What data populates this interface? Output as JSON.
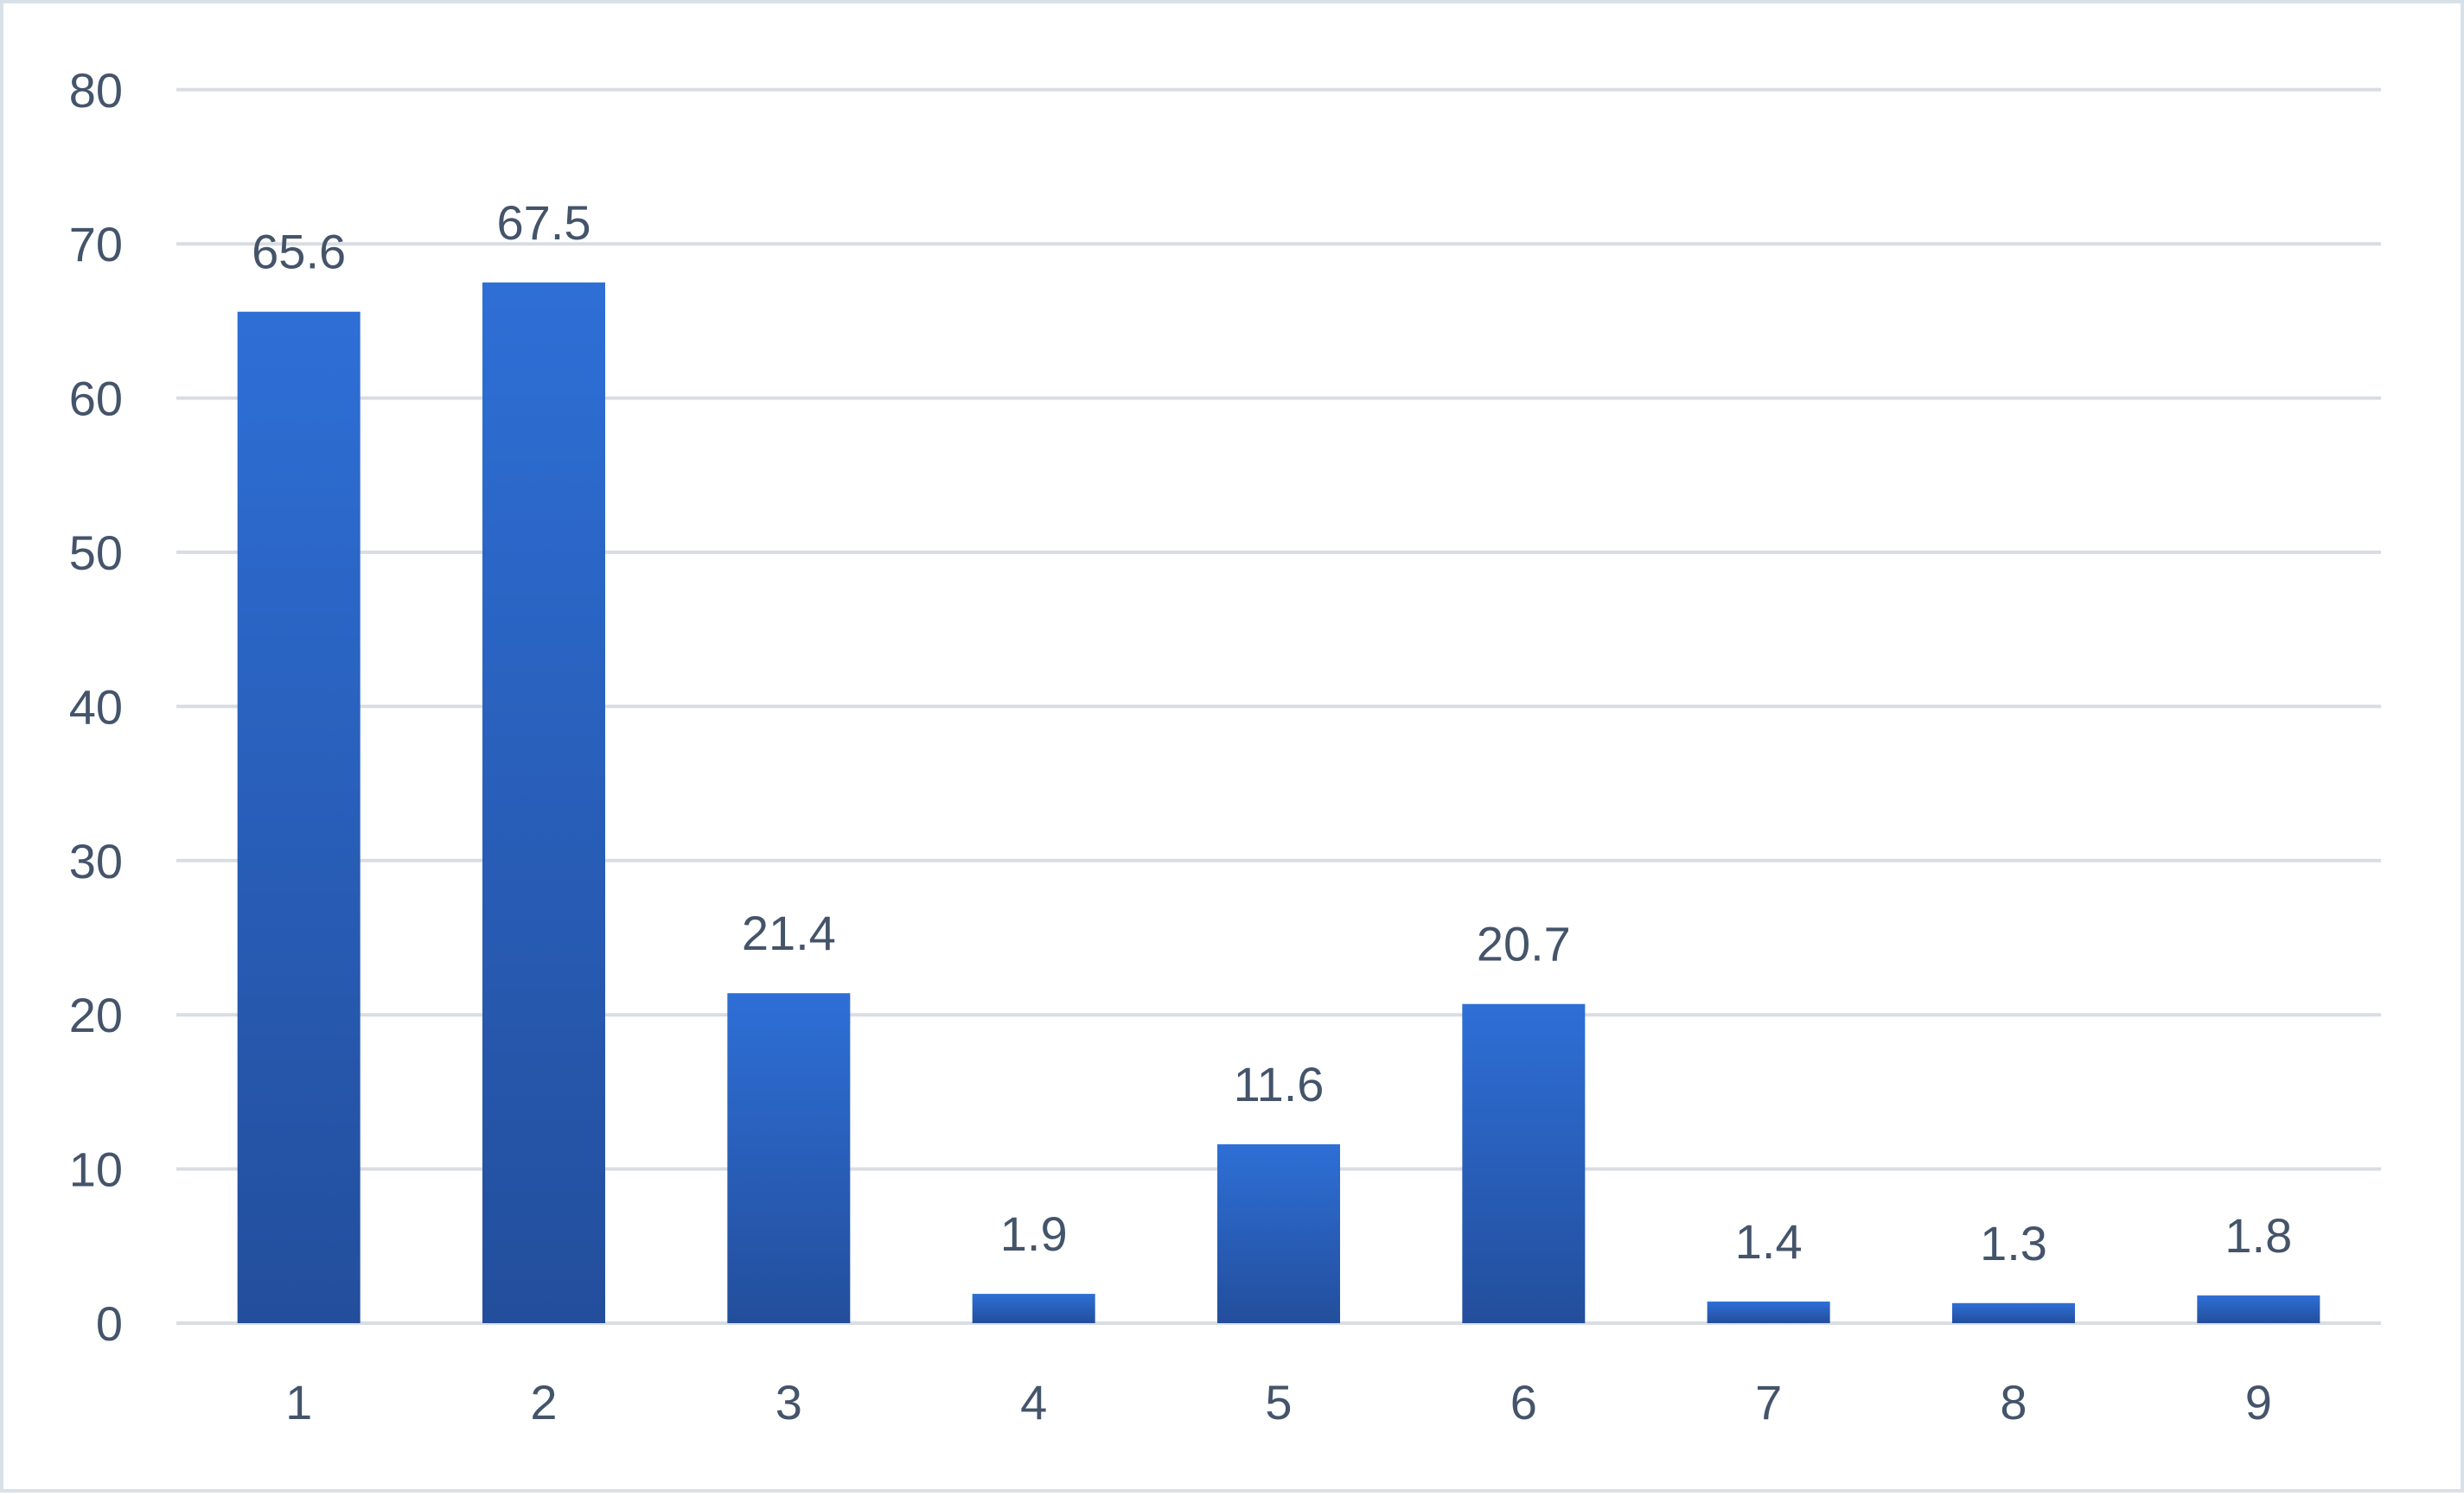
{
  "chart_data": {
    "type": "bar",
    "categories": [
      "1",
      "2",
      "3",
      "4",
      "5",
      "6",
      "7",
      "8",
      "9"
    ],
    "values": [
      65.6,
      67.5,
      21.4,
      1.9,
      11.6,
      20.7,
      1.4,
      1.3,
      1.8
    ],
    "data_labels": [
      "65.6",
      "67.5",
      "21.4",
      "1.9",
      "11.6",
      "20.7",
      "1.4",
      "1.3",
      "1.8"
    ],
    "yticks": [
      0,
      10,
      20,
      30,
      40,
      50,
      60,
      70,
      80
    ],
    "ylim": [
      0,
      80
    ],
    "title": "",
    "xlabel": "",
    "ylabel": "",
    "grid": true,
    "legend": "none",
    "colors": {
      "bar_top": "#2e6fd6",
      "bar_bottom": "#234e9c",
      "gridline": "#d9dde3",
      "text": "#44546a",
      "border": "#d9e1e8"
    }
  }
}
